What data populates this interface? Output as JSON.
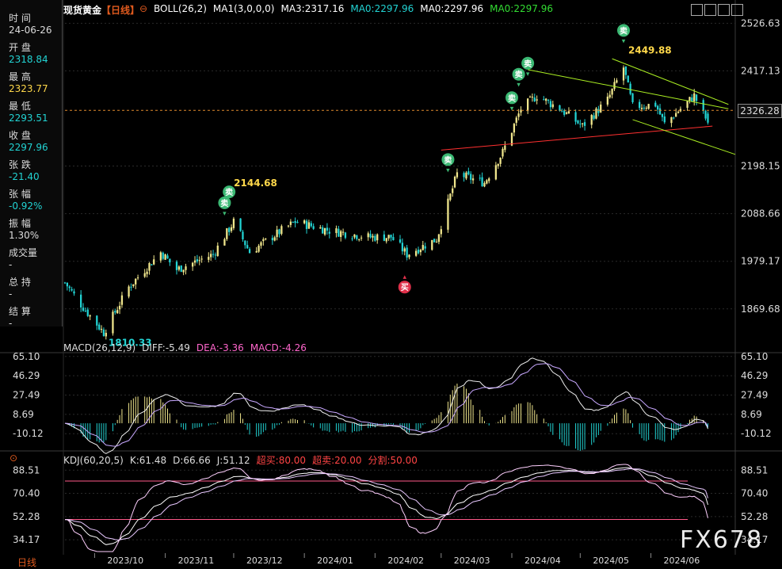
{
  "header": {
    "symbol": "现货黄金",
    "period_tag": "【日线】",
    "indicators": [
      {
        "text": "BOLL(26,2)",
        "color": "#ffffff"
      },
      {
        "text": "MA1(3,0,0,0)",
        "color": "#ffffff"
      },
      {
        "text": "MA3:2317.16",
        "color": "#ffffff"
      },
      {
        "text": "MA0:2297.96",
        "color": "#22d3d3"
      },
      {
        "text": "MA0:2297.96",
        "color": "#ffffff"
      },
      {
        "text": "MA0:2297.96",
        "color": "#33dd33"
      }
    ]
  },
  "sidebar": {
    "rows": [
      {
        "label": "时 间",
        "value": "24-06-26",
        "value_color": "#dddddd"
      },
      {
        "label": "开 盘",
        "value": "2318.84",
        "value_color": "#22d3d3"
      },
      {
        "label": "最 高",
        "value": "2323.77",
        "value_color": "#ffd84a"
      },
      {
        "label": "最 低",
        "value": "2293.51",
        "value_color": "#22d3d3"
      },
      {
        "label": "收 盘",
        "value": "2297.96",
        "value_color": "#22d3d3"
      },
      {
        "label": "张 跌",
        "value": "-21.40",
        "value_color": "#22d3d3"
      },
      {
        "label": "张 幅",
        "value": "-0.92%",
        "value_color": "#22d3d3"
      },
      {
        "label": "振 幅",
        "value": "1.30%",
        "value_color": "#dddddd"
      },
      {
        "label": "成交量",
        "value": "-",
        "value_color": "#dddddd"
      },
      {
        "label": "总 持",
        "value": "-",
        "value_color": "#dddddd"
      },
      {
        "label": "结 算",
        "value": "-",
        "value_color": "#dddddd"
      }
    ]
  },
  "price_tag": "2326.28",
  "watermark": "FX678",
  "period_button": "日线",
  "colors": {
    "up": "#f0e68c",
    "down": "#22d3d3",
    "grid": "#2a2a2a",
    "accent": "#e05a1e"
  },
  "chart_data": [
    {
      "type": "candlestick",
      "title": "现货黄金【日线】",
      "y_ticks": [
        "2526.63",
        "2417.13",
        "2198.15",
        "2088.66",
        "1979.17",
        "1869.68"
      ],
      "ylim": [
        1800,
        2540
      ],
      "x_ticks": [
        "2023/10",
        "2023/11",
        "2023/12",
        "2024/01",
        "2024/02",
        "2024/03",
        "2024/04",
        "2024/05",
        "2024/06"
      ],
      "last": {
        "date": "24-06-26",
        "open": 2318.84,
        "high": 2323.77,
        "low": 2293.51,
        "close": 2297.96
      },
      "current_price": 2326.28,
      "price_anchors": [
        {
          "date": "2023-09-18",
          "close": 1930
        },
        {
          "date": "2023-09-25",
          "close": 1880
        },
        {
          "date": "2023-10-05",
          "close": 1815
        },
        {
          "date": "2023-10-16",
          "close": 1920
        },
        {
          "date": "2023-10-30",
          "close": 2000
        },
        {
          "date": "2023-11-06",
          "close": 1960
        },
        {
          "date": "2023-11-22",
          "close": 1995
        },
        {
          "date": "2023-12-01",
          "close": 2070
        },
        {
          "date": "2023-12-08",
          "close": 2000
        },
        {
          "date": "2023-12-22",
          "close": 2050
        },
        {
          "date": "2023-12-28",
          "close": 2070
        },
        {
          "date": "2024-01-12",
          "close": 2050
        },
        {
          "date": "2024-01-29",
          "close": 2035
        },
        {
          "date": "2024-02-08",
          "close": 2035
        },
        {
          "date": "2024-02-15",
          "close": 1995
        },
        {
          "date": "2024-02-28",
          "close": 2030
        },
        {
          "date": "2024-03-08",
          "close": 2180
        },
        {
          "date": "2024-03-20",
          "close": 2160
        },
        {
          "date": "2024-03-28",
          "close": 2230
        },
        {
          "date": "2024-04-05",
          "close": 2330
        },
        {
          "date": "2024-04-12",
          "close": 2360
        },
        {
          "date": "2024-04-22",
          "close": 2330
        },
        {
          "date": "2024-05-02",
          "close": 2290
        },
        {
          "date": "2024-05-13",
          "close": 2350
        },
        {
          "date": "2024-05-20",
          "close": 2425
        },
        {
          "date": "2024-05-24",
          "close": 2335
        },
        {
          "date": "2024-06-03",
          "close": 2340
        },
        {
          "date": "2024-06-07",
          "close": 2295
        },
        {
          "date": "2024-06-20",
          "close": 2360
        },
        {
          "date": "2024-06-26",
          "close": 2298
        }
      ],
      "annotations": [
        {
          "text": "1810.33",
          "date": "2023-10-05",
          "price": 1810.33,
          "kind": "low",
          "color": "#22d3d3"
        },
        {
          "text": "2144.68",
          "date": "2023-11-29",
          "price": 2144.68,
          "kind": "high",
          "color": "#ffd84a"
        },
        {
          "text": "2449.88",
          "date": "2024-05-20",
          "price": 2449.88,
          "kind": "high",
          "color": "#ffd84a"
        }
      ],
      "signals": [
        {
          "type": "sell",
          "text": "卖",
          "date": "2023-11-27"
        },
        {
          "type": "sell",
          "text": "卖",
          "date": "2023-11-29"
        },
        {
          "type": "buy",
          "text": "买",
          "date": "2024-02-14"
        },
        {
          "type": "sell",
          "text": "卖",
          "date": "2024-03-04"
        },
        {
          "type": "sell",
          "text": "卖",
          "date": "2024-04-01"
        },
        {
          "type": "sell",
          "text": "卖",
          "date": "2024-04-04"
        },
        {
          "type": "sell",
          "text": "卖",
          "date": "2024-04-08"
        },
        {
          "type": "sell",
          "text": "卖",
          "date": "2024-05-20"
        }
      ],
      "trendlines": [
        {
          "color": "#ff3030",
          "from": {
            "date": "2024-03-01",
            "price": 2235
          },
          "to": {
            "date": "2024-06-28",
            "price": 2290
          }
        },
        {
          "color": "#aaee22",
          "from": {
            "date": "2024-04-08",
            "price": 2420
          },
          "to": {
            "date": "2024-07-05",
            "price": 2330
          }
        },
        {
          "color": "#aaee22",
          "from": {
            "date": "2024-05-15",
            "price": 2445
          },
          "to": {
            "date": "2024-07-05",
            "price": 2340
          }
        },
        {
          "color": "#aaee22",
          "from": {
            "date": "2024-05-24",
            "price": 2305
          },
          "to": {
            "date": "2024-07-08",
            "price": 2225
          }
        }
      ]
    },
    {
      "type": "bar",
      "title": "MACD(26,12,9)",
      "stats": [
        {
          "text": "DIFF:-5.49",
          "color": "#dddddd"
        },
        {
          "text": "DEA:-3.36",
          "color": "#ff66cc"
        },
        {
          "text": "MACD:-4.26",
          "color": "#ff66cc"
        }
      ],
      "y_ticks": [
        "65.10",
        "46.29",
        "27.49",
        "8.69",
        "-10.12"
      ],
      "ylim": [
        -20,
        68
      ],
      "last": {
        "diff": -5.49,
        "dea": -3.36,
        "macd": -4.26
      }
    },
    {
      "type": "line",
      "title": "KDJ(60,20,5)",
      "stats": [
        {
          "text": "K:61.48",
          "color": "#dddddd"
        },
        {
          "text": "D:66.66",
          "color": "#dddddd"
        },
        {
          "text": "J:51.12",
          "color": "#dddddd"
        },
        {
          "text": "超买:80.00",
          "color": "#ff4444"
        },
        {
          "text": "超卖:20.00",
          "color": "#ff4444"
        },
        {
          "text": "分割:50.00",
          "color": "#ff4444"
        }
      ],
      "y_ticks": [
        "88.51",
        "70.40",
        "52.28",
        "34.17"
      ],
      "ylim": [
        25,
        93
      ],
      "levels": [
        80,
        50
      ],
      "last": {
        "k": 61.48,
        "d": 66.66,
        "j": 51.12
      }
    }
  ]
}
